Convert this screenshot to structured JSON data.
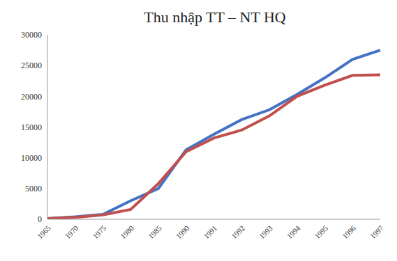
{
  "chart_data": {
    "type": "line",
    "title": "Thu nhập TT – NT HQ",
    "categories": [
      "1965",
      "1970",
      "1975",
      "1980",
      "1985",
      "1990",
      "1991",
      "1992",
      "1993",
      "1994",
      "1995",
      "1996",
      "1997"
    ],
    "series": [
      {
        "color": "#4472c4",
        "values": [
          100,
          400,
          800,
          3000,
          5000,
          11300,
          13800,
          16200,
          17800,
          20300,
          23000,
          26000,
          27500
        ]
      },
      {
        "color": "#c0504d",
        "values": [
          100,
          300,
          700,
          1600,
          5800,
          11000,
          13200,
          14500,
          16800,
          20000,
          21800,
          23400,
          23500
        ]
      }
    ],
    "ylim": [
      0,
      30000
    ],
    "yticks": [
      0,
      5000,
      10000,
      15000,
      20000,
      25000,
      30000
    ],
    "grid": false
  }
}
